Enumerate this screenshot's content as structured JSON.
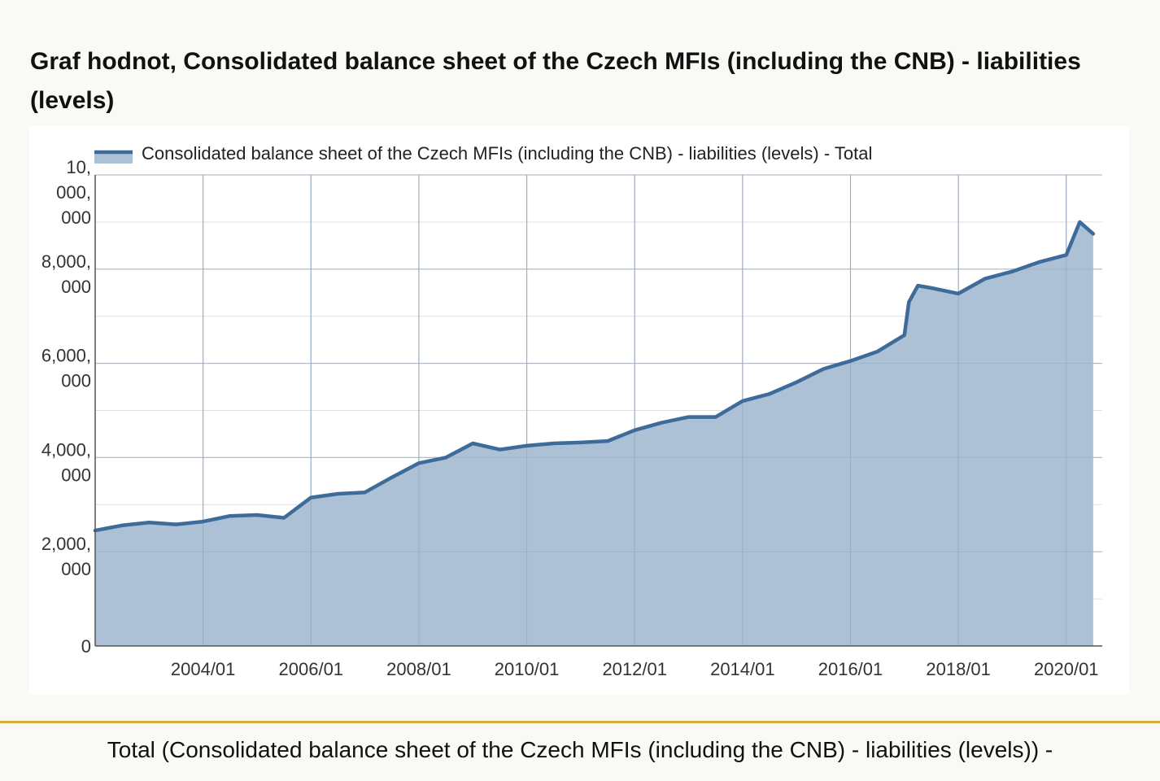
{
  "page": {
    "title": "Graf hodnot, Consolidated balance sheet of the Czech MFIs (including the CNB) - liabilities (levels)",
    "footer": "Total (Consolidated balance sheet of the Czech MFIs (including the CNB) - liabilities (levels)) -"
  },
  "colors": {
    "line": "#3d6b9a",
    "area": "#adc1d6",
    "grid": "#cccccc",
    "axis": "#555555",
    "divider": "#d6ae3c"
  },
  "chart_data": {
    "type": "area",
    "title": "",
    "xlabel": "",
    "ylabel": "",
    "legend": {
      "position": "top",
      "entries": [
        "Consolidated balance sheet of the Czech MFIs (including the CNB) - liabilities (levels) - Total"
      ]
    },
    "series": [
      {
        "name": "Consolidated balance sheet of the Czech MFIs (including the CNB) - liabilities (levels) - Total",
        "x": [
          "2002/01",
          "2002/07",
          "2003/01",
          "2003/07",
          "2004/01",
          "2004/07",
          "2005/01",
          "2005/07",
          "2006/01",
          "2006/07",
          "2007/01",
          "2007/07",
          "2008/01",
          "2008/07",
          "2009/01",
          "2009/07",
          "2010/01",
          "2010/07",
          "2011/01",
          "2011/07",
          "2012/01",
          "2012/07",
          "2013/01",
          "2013/07",
          "2014/01",
          "2014/07",
          "2015/01",
          "2015/07",
          "2016/01",
          "2016/07",
          "2017/01",
          "2017/02",
          "2017/04",
          "2017/07",
          "2018/01",
          "2018/07",
          "2019/01",
          "2019/07",
          "2020/01",
          "2020/04",
          "2020/07"
        ],
        "y": [
          2450000,
          2560000,
          2620000,
          2580000,
          2640000,
          2760000,
          2780000,
          2720000,
          3150000,
          3230000,
          3260000,
          3580000,
          3880000,
          4000000,
          4300000,
          4170000,
          4250000,
          4300000,
          4320000,
          4350000,
          4580000,
          4740000,
          4860000,
          4860000,
          5200000,
          5350000,
          5600000,
          5880000,
          6050000,
          6250000,
          6600000,
          7300000,
          7650000,
          7600000,
          7480000,
          7800000,
          7950000,
          8150000,
          8300000,
          9000000,
          8750000
        ]
      }
    ],
    "x_ticks": [
      "2004/01",
      "2006/01",
      "2008/01",
      "2010/01",
      "2012/01",
      "2014/01",
      "2016/01",
      "2018/01",
      "2020/01"
    ],
    "y_ticks": [
      {
        "value": 0,
        "label": [
          "0"
        ]
      },
      {
        "value": 2000000,
        "label": [
          "2,000,",
          "000"
        ]
      },
      {
        "value": 4000000,
        "label": [
          "4,000,",
          "000"
        ]
      },
      {
        "value": 6000000,
        "label": [
          "6,000,",
          "000"
        ]
      },
      {
        "value": 8000000,
        "label": [
          "8,000,",
          "000"
        ]
      },
      {
        "value": 10000000,
        "label": [
          "10,",
          "000,",
          "000"
        ]
      }
    ],
    "x_range": [
      "2002/01",
      "2020/09"
    ],
    "ylim": [
      0,
      10000000
    ],
    "grid": true
  }
}
